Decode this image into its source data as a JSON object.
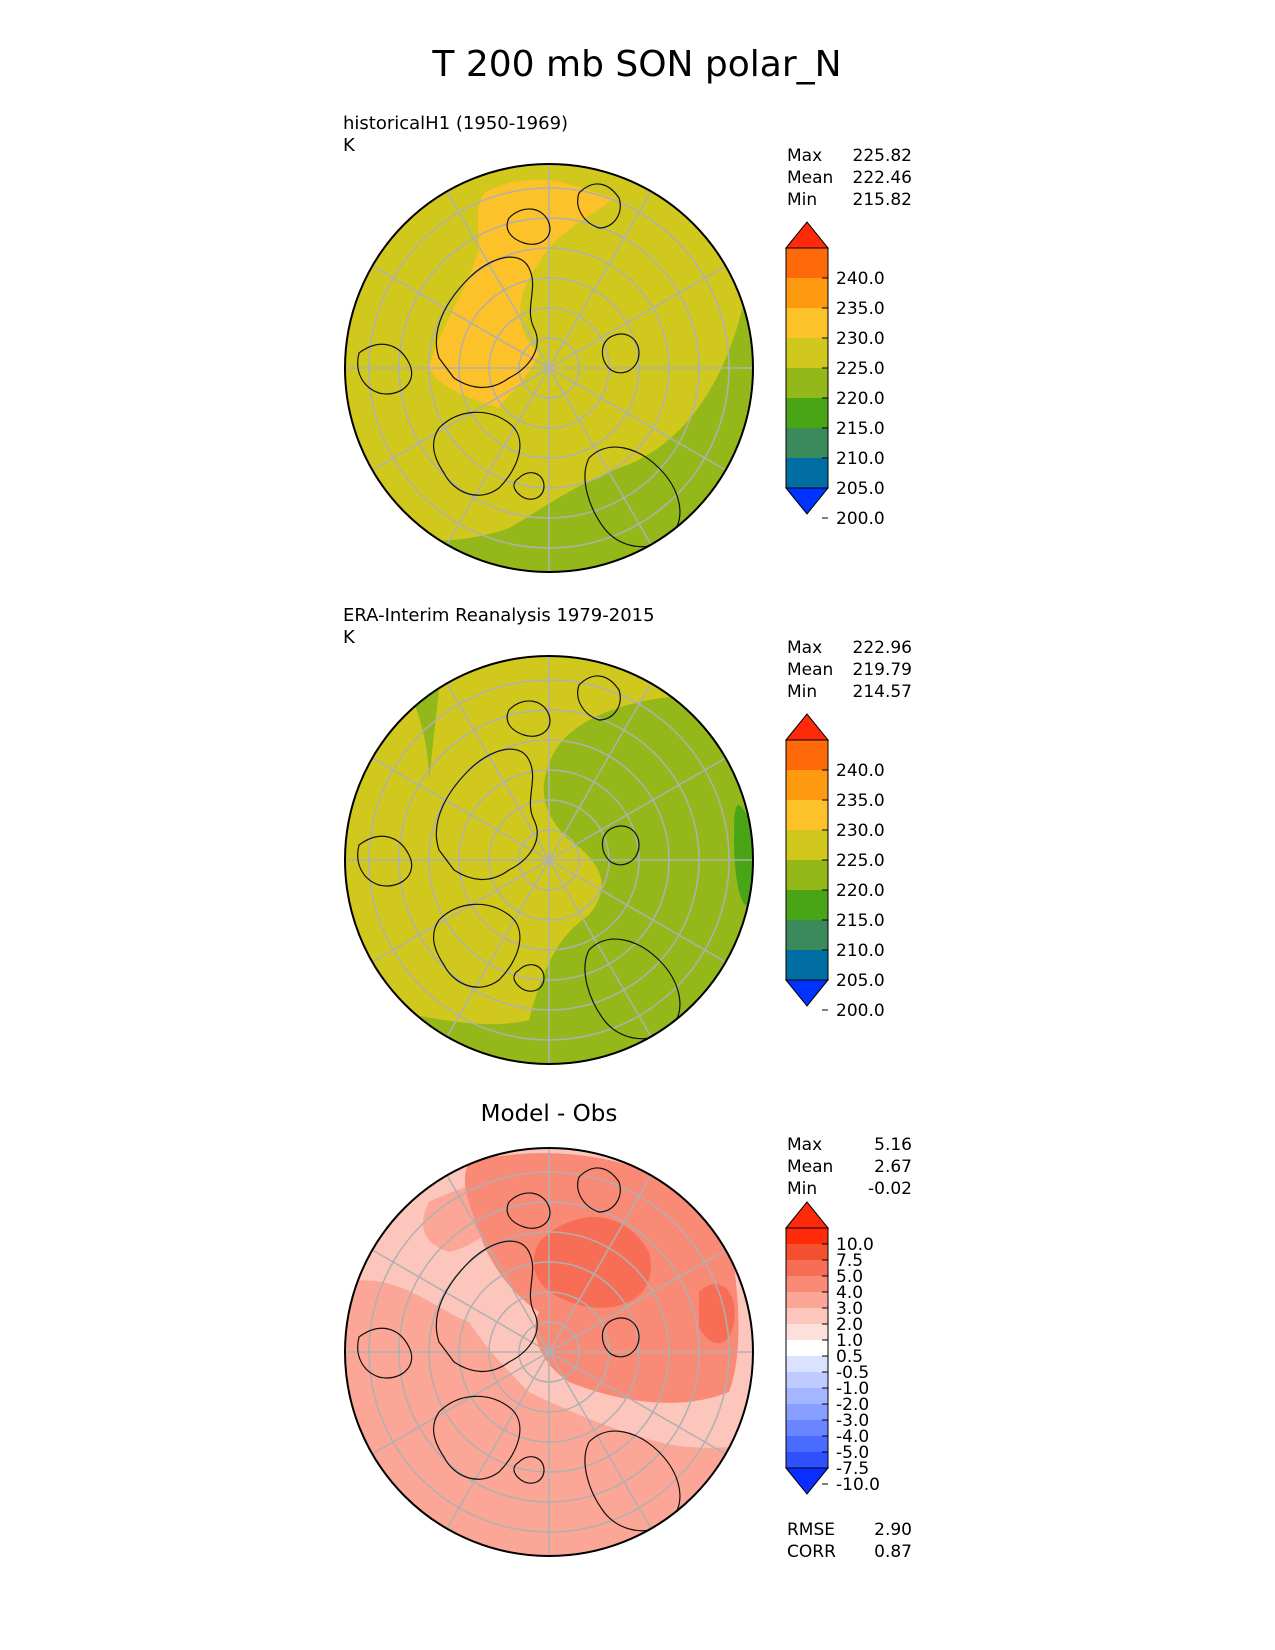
{
  "title": "T 200 mb SON polar_N",
  "chart_data": [
    {
      "type": "polar_contour_map",
      "title": "historicalH1 (1950-1969)",
      "units": "K",
      "stats": {
        "max": "225.82",
        "mean": "222.46",
        "min": "215.82"
      },
      "colorbar": {
        "boundaries": [
          200,
          205,
          210,
          215,
          220,
          225,
          230,
          235,
          240
        ],
        "tick_labels": [
          "240.0",
          "235.0",
          "230.0",
          "225.0",
          "220.0",
          "215.0",
          "210.0",
          "205.0",
          "200.0"
        ],
        "colors": [
          "#0033ff",
          "#006da3",
          "#3a8a5c",
          "#4aa516",
          "#94b81a",
          "#d1c81e",
          "#fdc12a",
          "#fd9a10",
          "#fe6a0a",
          "#ff2a0a"
        ]
      },
      "regions": [
        {
          "label": "220-225",
          "color": "#d1c81e"
        },
        {
          "label": "225-230",
          "color": "#fdc12a"
        },
        {
          "label": "215-220",
          "color": "#94b81a"
        }
      ]
    },
    {
      "type": "polar_contour_map",
      "title": "ERA-Interim Reanalysis 1979-2015",
      "units": "K",
      "stats": {
        "max": "222.96",
        "mean": "219.79",
        "min": "214.57"
      },
      "colorbar": {
        "boundaries": [
          200,
          205,
          210,
          215,
          220,
          225,
          230,
          235,
          240
        ],
        "tick_labels": [
          "240.0",
          "235.0",
          "230.0",
          "225.0",
          "220.0",
          "215.0",
          "210.0",
          "205.0",
          "200.0"
        ],
        "colors": [
          "#0033ff",
          "#006da3",
          "#3a8a5c",
          "#4aa516",
          "#94b81a",
          "#d1c81e",
          "#fdc12a",
          "#fd9a10",
          "#fe6a0a",
          "#ff2a0a"
        ]
      },
      "regions": [
        {
          "label": "215-220",
          "color": "#94b81a"
        },
        {
          "label": "220-225",
          "color": "#d1c81e"
        },
        {
          "label": "210-215",
          "color": "#4aa516"
        }
      ]
    },
    {
      "type": "polar_contour_map",
      "title": "Model - Obs",
      "units": "",
      "stats": {
        "max": "5.16",
        "mean": "2.67",
        "min": "-0.02"
      },
      "metrics": {
        "rmse": "2.90",
        "corr": "0.87"
      },
      "colorbar": {
        "boundaries": [
          -10.0,
          -7.5,
          -5.0,
          -4.0,
          -3.0,
          -2.0,
          -1.0,
          -0.5,
          0.5,
          1.0,
          2.0,
          3.0,
          4.0,
          5.0,
          7.5,
          10.0
        ],
        "tick_labels": [
          "10.0",
          "7.5",
          "5.0",
          "4.0",
          "3.0",
          "2.0",
          "1.0",
          "0.5",
          "-0.5",
          "-1.0",
          "-2.0",
          "-3.0",
          "-4.0",
          "-5.0",
          "-7.5",
          "-10.0"
        ],
        "colors": [
          "#0a2eff",
          "#3050ff",
          "#4a6bff",
          "#6985ff",
          "#879fff",
          "#a3b6ff",
          "#bfcbff",
          "#dbe2ff",
          "#ffffff",
          "#fde0dc",
          "#fcc6bd",
          "#fba696",
          "#f98a76",
          "#f86d55",
          "#f4502f",
          "#ff2a0a",
          "#ff2a0a"
        ]
      },
      "regions": [
        {
          "label": "1-2",
          "color": "#fcc6bd"
        },
        {
          "label": "2-3",
          "color": "#fba696"
        },
        {
          "label": "3-4",
          "color": "#f98a76"
        },
        {
          "label": "4-5",
          "color": "#f86d55"
        }
      ]
    }
  ],
  "labels": {
    "max": "Max",
    "mean": "Mean",
    "min": "Min",
    "rmse": "RMSE",
    "corr": "CORR"
  }
}
